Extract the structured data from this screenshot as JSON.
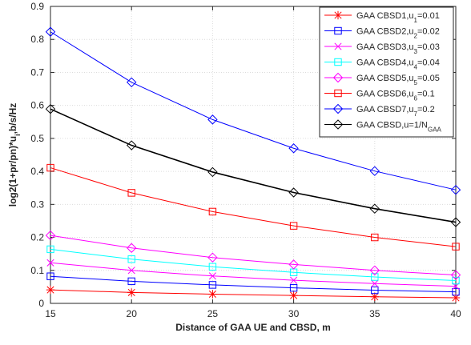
{
  "chart_data": {
    "type": "line",
    "xlabel": "Distance of GAA UE and CBSD, m",
    "ylabel": "log2(1+pr/pn)*u",
    "ylabel_sub": "i",
    "ylabel_tail": ",b/s/Hz",
    "xlim": [
      15,
      40
    ],
    "ylim": [
      0,
      0.9
    ],
    "x_ticks": [
      "15",
      "20",
      "25",
      "30",
      "35",
      "40"
    ],
    "y_ticks": [
      "0",
      "0.1",
      "0.2",
      "0.3",
      "0.4",
      "0.5",
      "0.6",
      "0.7",
      "0.8",
      "0.9"
    ],
    "grid": true,
    "legend_position": "top-right",
    "x": [
      15,
      20,
      25,
      30,
      35,
      40
    ],
    "series": [
      {
        "name": "GAA CBSD1,u",
        "sub": "1",
        "tail": "=0.01",
        "color": "#ff0000",
        "marker": "asterisk",
        "values": [
          0.041,
          0.033,
          0.028,
          0.024,
          0.02,
          0.017
        ]
      },
      {
        "name": "GAA CBSD2,u",
        "sub": "2",
        "tail": "=0.02",
        "color": "#0000ff",
        "marker": "square",
        "values": [
          0.082,
          0.067,
          0.056,
          0.047,
          0.04,
          0.035
        ]
      },
      {
        "name": "GAA CBSD3,u",
        "sub": "3",
        "tail": "=0.03",
        "color": "#ff00ff",
        "marker": "x",
        "values": [
          0.123,
          0.1,
          0.083,
          0.07,
          0.06,
          0.052
        ]
      },
      {
        "name": "GAA CBSD4,u",
        "sub": "4",
        "tail": "=0.04",
        "color": "#00ffff",
        "marker": "square",
        "values": [
          0.164,
          0.134,
          0.111,
          0.094,
          0.08,
          0.069
        ]
      },
      {
        "name": "GAA CBSD5,u",
        "sub": "5",
        "tail": "=0.05",
        "color": "#ff00ff",
        "marker": "diamond",
        "values": [
          0.206,
          0.168,
          0.139,
          0.118,
          0.1,
          0.086
        ]
      },
      {
        "name": "GAA CBSD6,u",
        "sub": "6",
        "tail": "=0.1",
        "color": "#ff0000",
        "marker": "square",
        "values": [
          0.411,
          0.335,
          0.278,
          0.235,
          0.2,
          0.172
        ]
      },
      {
        "name": "GAA CBSD7,u",
        "sub": "7",
        "tail": "=0.2",
        "color": "#0000ff",
        "marker": "diamond",
        "values": [
          0.823,
          0.67,
          0.557,
          0.47,
          0.401,
          0.344
        ]
      },
      {
        "name": "GAA CBSD,u=1/N",
        "sub": "GAA",
        "tail": "",
        "color": "#000000",
        "marker": "diamond",
        "values": [
          0.589,
          0.479,
          0.398,
          0.336,
          0.287,
          0.246
        ]
      }
    ]
  }
}
